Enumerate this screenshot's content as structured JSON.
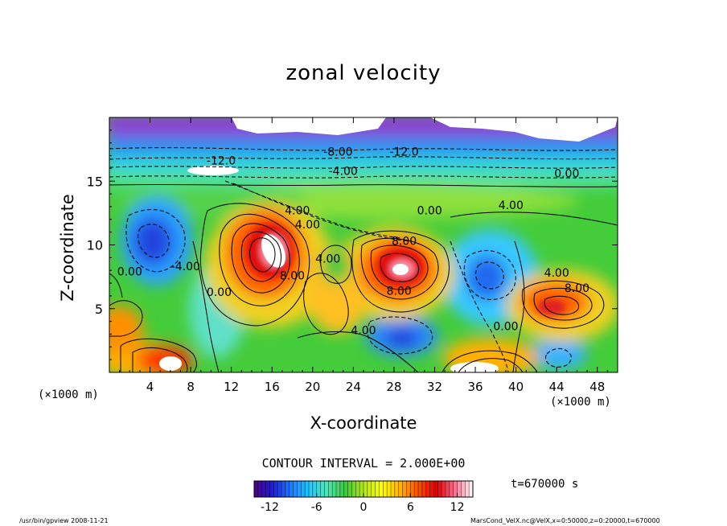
{
  "chart_data": {
    "type": "heatmap",
    "title": "zonal velocity",
    "xlabel": "X-coordinate",
    "ylabel": "Z-coordinate",
    "x_unit_left": "(×1000 m)",
    "x_unit_right": "(×1000 m)",
    "xlim": [
      0,
      50
    ],
    "ylim": [
      0,
      20
    ],
    "x_ticks": [
      4,
      8,
      12,
      16,
      20,
      24,
      28,
      32,
      36,
      40,
      44,
      48
    ],
    "y_ticks": [
      5,
      10,
      15
    ],
    "colorbar": {
      "range": [
        -14,
        14
      ],
      "ticks": [
        -12,
        -6,
        0,
        6,
        12
      ],
      "colormap": [
        "#4b0082",
        "#1e1ed2",
        "#1e78ff",
        "#1ec8ff",
        "#50e6b4",
        "#3cc83c",
        "#b4e61e",
        "#ffff00",
        "#ffb400",
        "#ff5000",
        "#dc0000",
        "#ff6e8c",
        "#ffffff"
      ]
    },
    "contour_interval": "CONTOUR INTERVAL = 2.000E+00",
    "contour_labels": [
      {
        "text": "-12.0",
        "x": 11.0,
        "z": 16.3
      },
      {
        "text": "-8.00",
        "x": 22.5,
        "z": 17.0
      },
      {
        "text": "-12.0",
        "x": 29.0,
        "z": 17.0
      },
      {
        "text": "-4.00",
        "x": 23.0,
        "z": 15.5
      },
      {
        "text": "0.00",
        "x": 45.0,
        "z": 15.3
      },
      {
        "text": "4.00",
        "x": 18.5,
        "z": 12.4
      },
      {
        "text": "4.00",
        "x": 19.5,
        "z": 11.3
      },
      {
        "text": "0.00",
        "x": 31.5,
        "z": 12.4
      },
      {
        "text": "4.00",
        "x": 39.5,
        "z": 12.8
      },
      {
        "text": "8.00",
        "x": 29.0,
        "z": 10.0
      },
      {
        "text": "4.00",
        "x": 21.5,
        "z": 8.6
      },
      {
        "text": "8.00",
        "x": 18.0,
        "z": 7.3
      },
      {
        "text": "0.00",
        "x": 2.0,
        "z": 7.6
      },
      {
        "text": "-4.00",
        "x": 7.5,
        "z": 8.0
      },
      {
        "text": "0.00",
        "x": 10.8,
        "z": 6.0
      },
      {
        "text": "8.00",
        "x": 28.5,
        "z": 6.1
      },
      {
        "text": "4.00",
        "x": 44.0,
        "z": 7.5
      },
      {
        "text": "8.00",
        "x": 46.0,
        "z": 6.3
      },
      {
        "text": "4.00",
        "x": 25.0,
        "z": 3.0
      },
      {
        "text": "0.00",
        "x": 39.0,
        "z": 3.3
      }
    ],
    "grid": false
  },
  "annotations": {
    "time": "t=670000 s",
    "footer_left": "/usr/bin/gpview   2008-11-21",
    "footer_right": "MarsCond_VelX.nc@VelX,x=0:50000,z=0:20000,t=670000"
  }
}
